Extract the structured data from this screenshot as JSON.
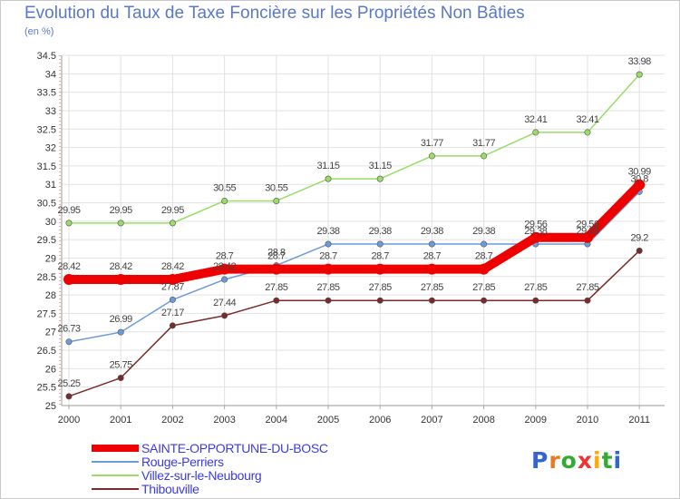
{
  "chart_data": {
    "type": "line",
    "title": "Evolution du Taux de Taxe Foncière sur les Propriétés Non Bâties",
    "unit_label": "(en %)",
    "xlabel": "",
    "ylabel": "",
    "ylim": [
      25,
      34.5
    ],
    "y_ticks": [
      "25",
      "25.5",
      "26",
      "26.5",
      "27",
      "27.5",
      "28",
      "28.5",
      "29",
      "29.5",
      "30",
      "30.5",
      "31",
      "31.5",
      "32",
      "32.5",
      "33",
      "33.5",
      "34",
      "34.5"
    ],
    "grid": true,
    "categories": [
      "2000",
      "2001",
      "2002",
      "2003",
      "2004",
      "2005",
      "2006",
      "2007",
      "2008",
      "2009",
      "2010",
      "2011"
    ],
    "series": [
      {
        "name": "SAINTE-OPPORTUNE-DU-BOSC",
        "color": "#ee0000",
        "values": [
          28.42,
          28.42,
          28.42,
          28.7,
          28.7,
          28.7,
          28.7,
          28.7,
          28.7,
          29.56,
          29.56,
          30.99
        ],
        "labels": [
          "28.42",
          "28.42",
          "28.42",
          "28.7",
          "28.7",
          "28.7",
          "28.7",
          "28.7",
          "28.7",
          "29.56",
          "29.56",
          "30.99"
        ]
      },
      {
        "name": "Rouge-Perriers",
        "color": "#6b9bd8",
        "values": [
          26.73,
          26.99,
          27.87,
          28.42,
          28.8,
          29.38,
          29.38,
          29.38,
          29.38,
          29.38,
          29.38,
          30.8
        ],
        "labels": [
          "26.73",
          "26.99",
          "27.87",
          "28.42",
          "28.8",
          "29.38",
          "29.38",
          "29.38",
          "29.38",
          "29.38",
          "29.38",
          "30.8"
        ]
      },
      {
        "name": "Villez-sur-le-Neubourg",
        "color": "#99dd66",
        "values": [
          29.95,
          29.95,
          29.95,
          30.55,
          30.55,
          31.15,
          31.15,
          31.77,
          31.77,
          32.41,
          32.41,
          33.98
        ],
        "labels": [
          "29.95",
          "29.95",
          "29.95",
          "30.55",
          "30.55",
          "31.15",
          "31.15",
          "31.77",
          "31.77",
          "32.41",
          "32.41",
          "33.98"
        ]
      },
      {
        "name": "Thibouville",
        "color": "#7a2a2a",
        "values": [
          25.25,
          25.75,
          27.17,
          27.44,
          27.85,
          27.85,
          27.85,
          27.85,
          27.85,
          27.85,
          27.85,
          29.2
        ],
        "labels": [
          "25.25",
          "25.75",
          "27.17",
          "27.44",
          "27.85",
          "27.85",
          "27.85",
          "27.85",
          "27.85",
          "27.85",
          "27.85",
          "29.2"
        ]
      }
    ]
  },
  "logo": {
    "text": "Proxiti",
    "colors": [
      "#3366cc",
      "#ee7722",
      "#33aa33",
      "#ee3333",
      "#ffaa00",
      "#33aa33",
      "#3366cc"
    ]
  }
}
